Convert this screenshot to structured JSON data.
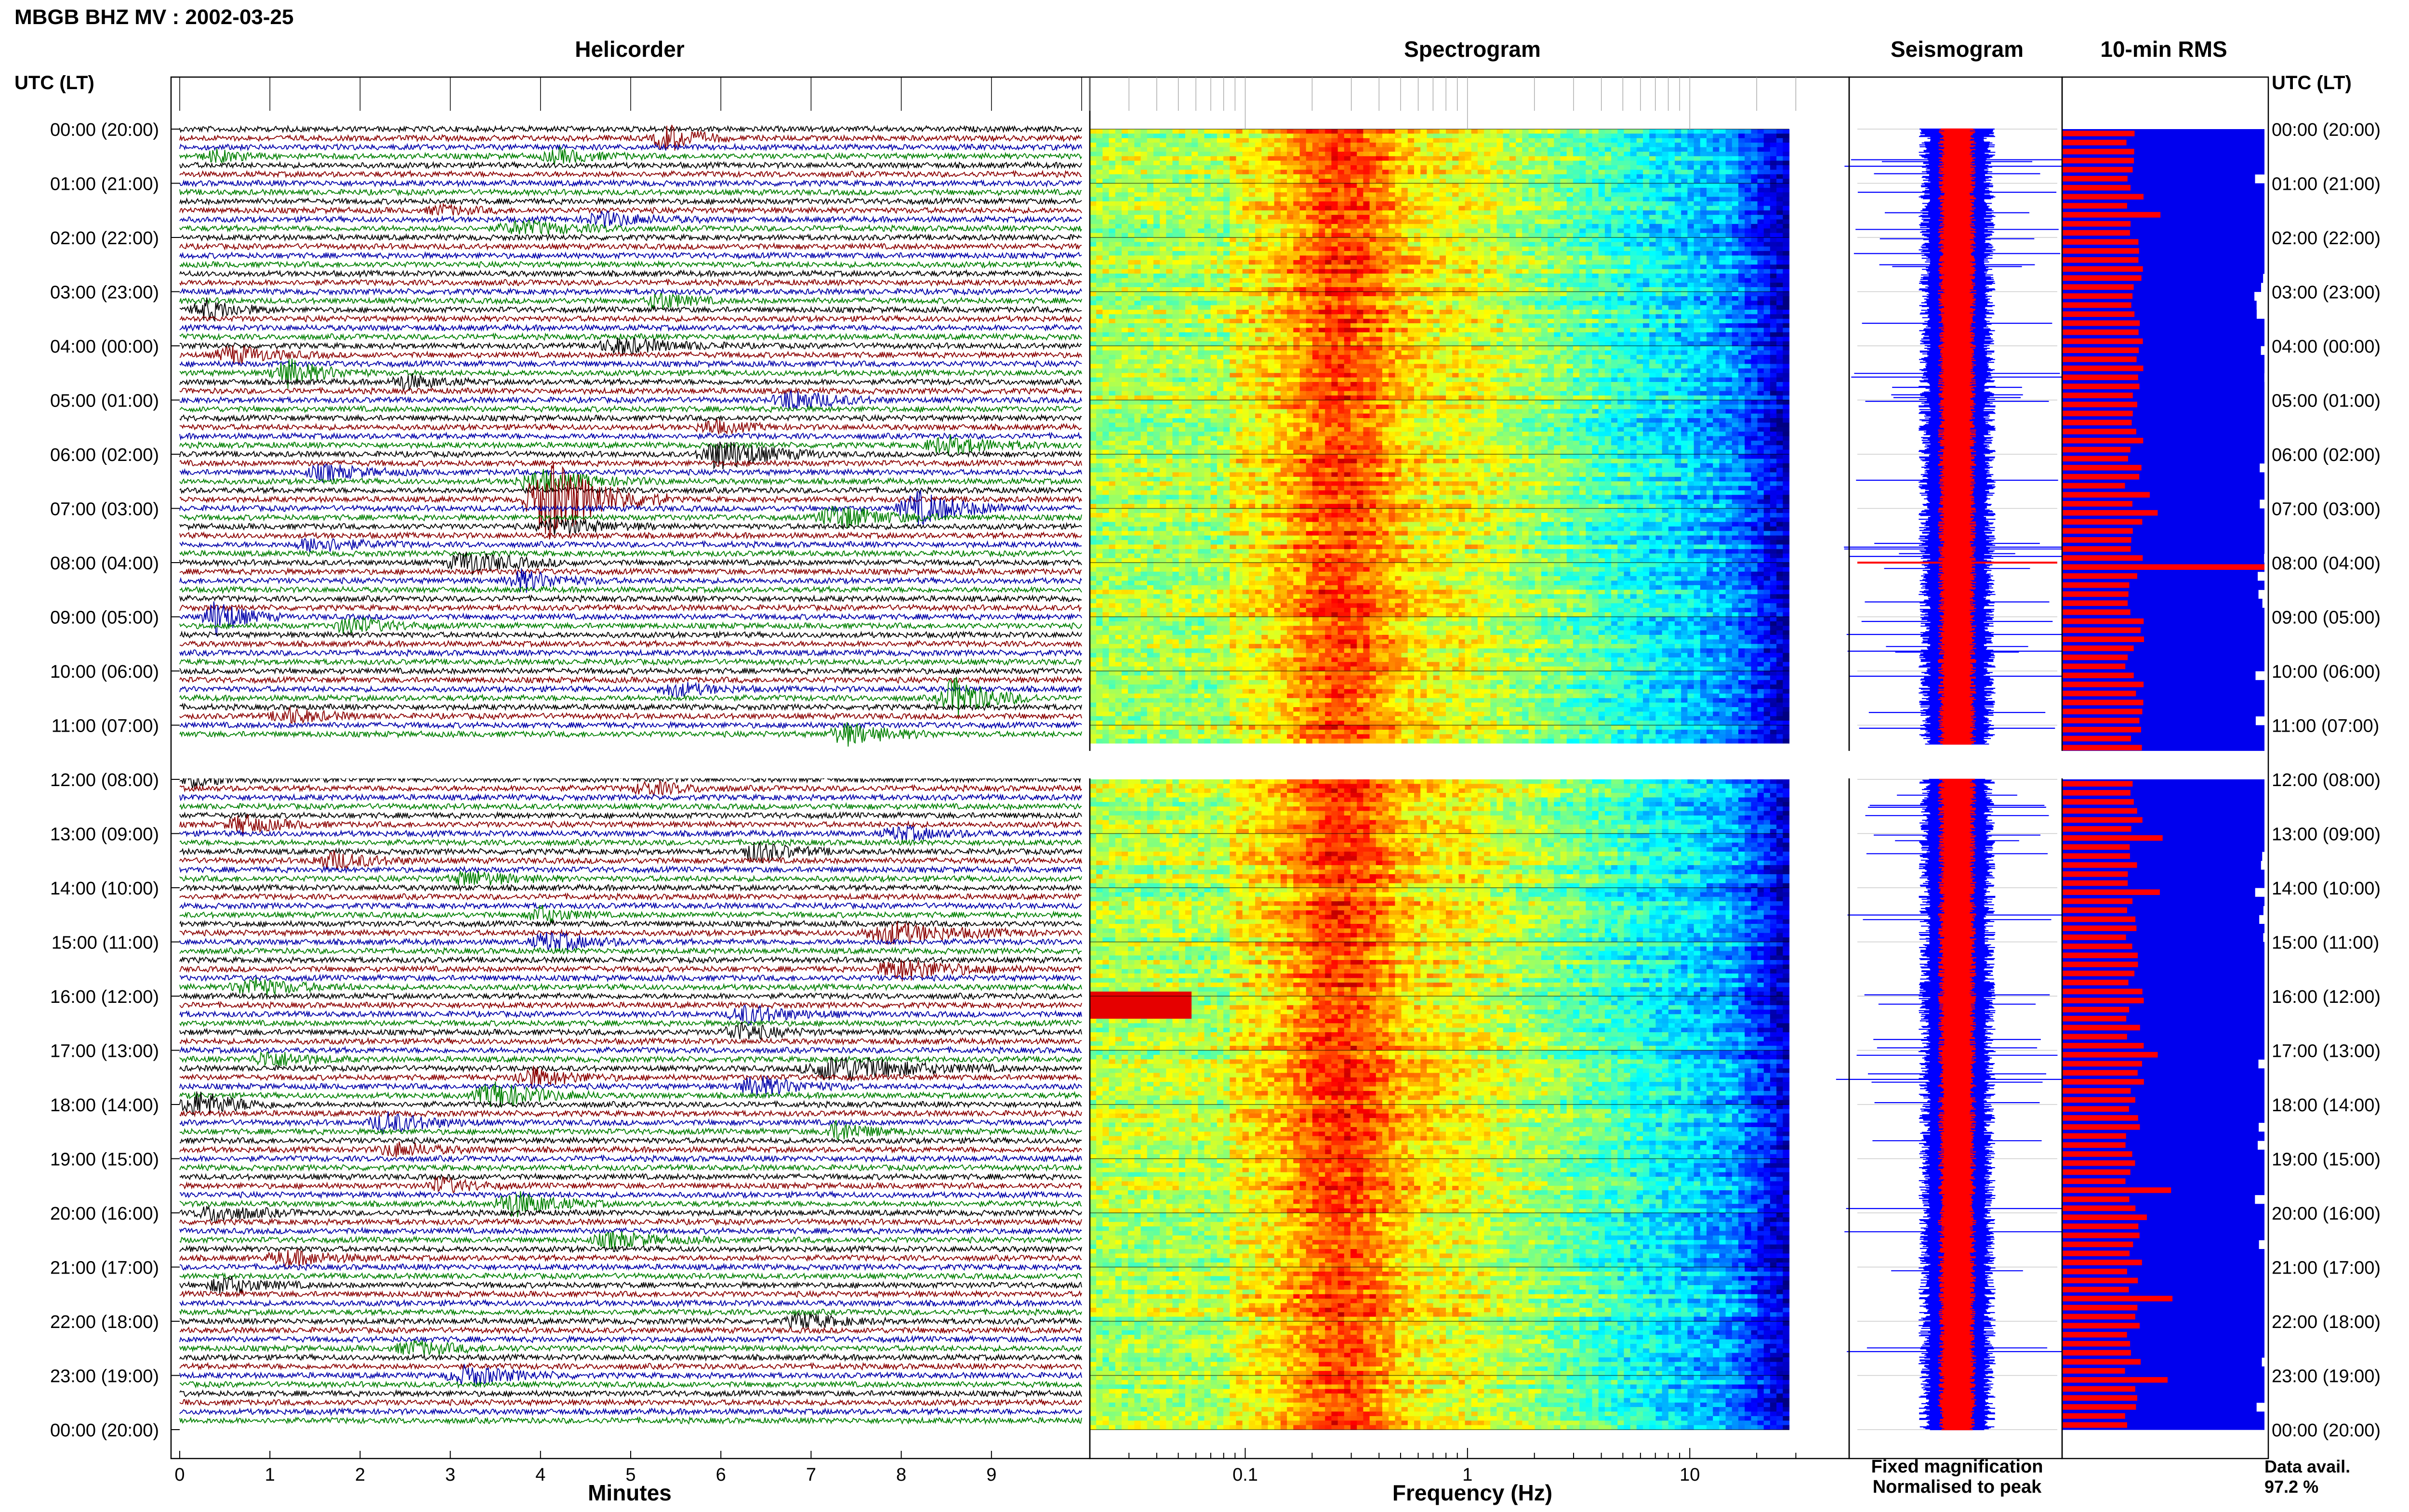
{
  "title": "MBGB BHZ MV : 2002-03-25",
  "panel_titles": {
    "helicorder": "Helicorder",
    "spectrogram": "Spectrogram",
    "seismogram": "Seismogram",
    "rms": "10-min RMS"
  },
  "time_axis_label": "UTC (LT)",
  "x_labels": {
    "helicorder": "Minutes",
    "spectrogram": "Frequency (Hz)"
  },
  "legend": {
    "fixed": "Fixed magnification",
    "normalised": "Normalised to peak",
    "fixed_color": "#0000ff",
    "normalised_color": "#ff0000"
  },
  "data_avail": {
    "label": "Data avail.",
    "value": "97.2 %"
  },
  "colors": {
    "trace_cycle": [
      "#000000",
      "#8b0000",
      "#0000aa",
      "#008000"
    ],
    "spec_low": "#000088",
    "spec_high": "#ff0000",
    "rms_fill": "#0000ee",
    "rms_bar": "#ff0000"
  },
  "chart_data": {
    "type": "heatmap",
    "time_ticks": [
      "00:00 (20:00)",
      "01:00 (21:00)",
      "02:00 (22:00)",
      "03:00 (23:00)",
      "04:00 (00:00)",
      "05:00 (01:00)",
      "06:00 (02:00)",
      "07:00 (03:00)",
      "08:00 (04:00)",
      "09:00 (05:00)",
      "10:00 (06:00)",
      "11:00 (07:00)",
      "12:00 (08:00)",
      "13:00 (09:00)",
      "14:00 (10:00)",
      "15:00 (11:00)",
      "16:00 (12:00)",
      "17:00 (13:00)",
      "18:00 (14:00)",
      "19:00 (15:00)",
      "20:00 (16:00)",
      "21:00 (17:00)",
      "22:00 (18:00)",
      "23:00 (19:00)",
      "00:00 (20:00)"
    ],
    "helicorder": {
      "x_ticks": [
        0,
        1,
        2,
        3,
        4,
        5,
        6,
        7,
        8,
        9
      ],
      "xlim": [
        0,
        10
      ],
      "lines_per_hour": 6
    },
    "spectrogram": {
      "x_scale": "log",
      "x_ticks": [
        0.1,
        1,
        10
      ],
      "x_tick_labels": [
        "0.1",
        "1",
        "10"
      ],
      "xlim": [
        0.02,
        40
      ]
    },
    "gap": {
      "from_hour": 11.35,
      "to_hour": 12.0
    }
  }
}
